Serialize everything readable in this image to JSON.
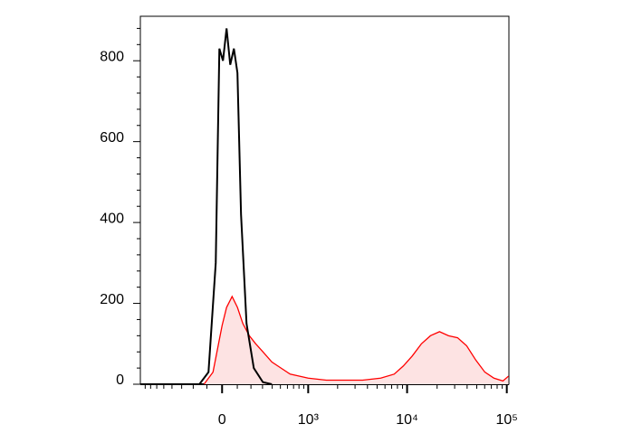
{
  "chart_data": {
    "type": "histogram-overlay",
    "x_scale": "biexponential",
    "xlim": [
      -900,
      105000
    ],
    "ylim": [
      0,
      910
    ],
    "xticks": [
      {
        "value": 0,
        "label": "0"
      },
      {
        "value": 1000,
        "label": "10³"
      },
      {
        "value": 10000,
        "label": "10⁴"
      },
      {
        "value": 100000,
        "label": "10⁵"
      }
    ],
    "xminorticks": [
      -800,
      -700,
      -600,
      -500,
      -400,
      -300,
      -200,
      -100,
      100,
      200,
      300,
      400,
      500,
      600,
      700,
      800,
      900,
      2000,
      3000,
      4000,
      5000,
      6000,
      7000,
      8000,
      9000,
      20000,
      30000,
      40000,
      50000,
      60000,
      70000,
      80000,
      90000
    ],
    "yticks": [
      0,
      200,
      400,
      600,
      800
    ],
    "yminorticks": [
      40,
      80,
      120,
      160,
      240,
      280,
      320,
      360,
      440,
      480,
      520,
      560,
      640,
      680,
      720,
      760,
      840,
      880
    ],
    "series": [
      {
        "color": "#ff0000",
        "fill": "#fde3e3",
        "x": [
          -120,
          -59,
          0,
          29,
          65,
          101,
          139,
          187,
          239,
          304,
          396,
          508,
          642,
          1000,
          1535,
          2344,
          3573,
          5427,
          7420,
          9150,
          11280,
          13920,
          17160,
          21150,
          26060,
          32100,
          39600,
          48800,
          60200,
          74300,
          91500,
          104000
        ],
        "values": [
          0,
          30,
          145,
          190,
          217,
          190,
          150,
          120,
          100,
          80,
          55,
          40,
          25,
          15,
          10,
          10,
          10,
          15,
          25,
          45,
          70,
          100,
          120,
          130,
          120,
          115,
          95,
          60,
          30,
          15,
          8,
          20
        ]
      },
      {
        "color": "#000000",
        "x": [
          -153,
          -89,
          -41,
          -17.5,
          5.8,
          29,
          52.8,
          77,
          101,
          126,
          166,
          223,
          304,
          396
        ],
        "values": [
          0,
          30,
          300,
          830,
          800,
          880,
          790,
          830,
          770,
          420,
          150,
          40,
          5,
          0
        ]
      }
    ]
  }
}
